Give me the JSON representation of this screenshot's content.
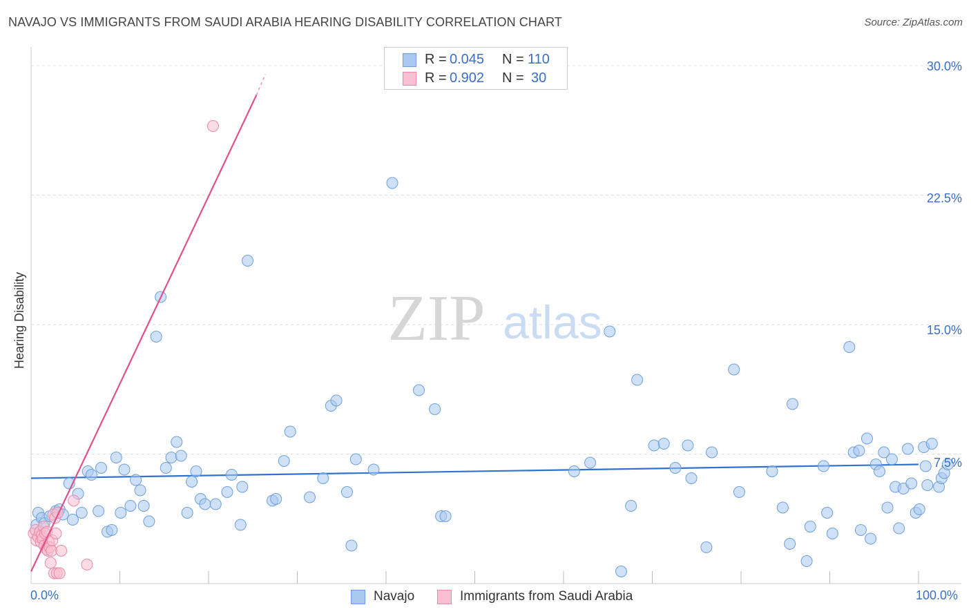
{
  "title": "NAVAJO VS IMMIGRANTS FROM SAUDI ARABIA HEARING DISABILITY CORRELATION CHART",
  "source": "Source: ZipAtlas.com",
  "watermark": {
    "zip": "ZIP",
    "atlas": "atlas"
  },
  "legend_top": {
    "rows": [
      {
        "r_label": "R =",
        "r_value": "0.045",
        "n_label": "N =",
        "n_value": "110",
        "color": "#a8c8f0",
        "border": "#6f9fd8"
      },
      {
        "r_label": "R =",
        "r_value": "0.902",
        "n_label": "N =",
        "n_value": "30",
        "color": "#f8c0d0",
        "border": "#e98aa8"
      }
    ]
  },
  "legend_bottom": [
    {
      "label": "Navajo",
      "color": "#a8c8f0",
      "border": "#6f9fd8"
    },
    {
      "label": "Immigrants from Saudi Arabia",
      "color": "#f8c0d0",
      "border": "#e98aa8"
    }
  ],
  "chart_data": {
    "type": "scatter",
    "title": "NAVAJO VS IMMIGRANTS FROM SAUDI ARABIA HEARING DISABILITY CORRELATION CHART",
    "xlabel": "",
    "ylabel": "Hearing Disability",
    "xlim": [
      0,
      100
    ],
    "ylim": [
      0,
      30.8
    ],
    "x_tick_labels": [
      "0.0%",
      "100.0%"
    ],
    "y_ticks": [
      7.5,
      15.0,
      22.5,
      30.0
    ],
    "y_tick_labels": [
      "7.5%",
      "15.0%",
      "22.5%",
      "30.0%"
    ],
    "grid": true,
    "series": [
      {
        "name": "Navajo",
        "color": "#a8c8f0",
        "stroke": "#6f9fd8",
        "trend": {
          "x": [
            0,
            100
          ],
          "y": [
            6.1,
            6.9
          ],
          "color": "#2f72d0"
        },
        "points": [
          [
            0.6,
            3.4
          ],
          [
            0.8,
            4.1
          ],
          [
            1.2,
            3.8
          ],
          [
            1.5,
            3.5
          ],
          [
            2.1,
            3.9
          ],
          [
            2.8,
            4.2
          ],
          [
            3.2,
            4.3
          ],
          [
            3.6,
            4.0
          ],
          [
            4.3,
            5.8
          ],
          [
            4.7,
            3.7
          ],
          [
            5.3,
            5.2
          ],
          [
            5.7,
            4.1
          ],
          [
            6.4,
            6.5
          ],
          [
            6.8,
            6.3
          ],
          [
            7.6,
            4.2
          ],
          [
            7.9,
            6.7
          ],
          [
            8.6,
            3.0
          ],
          [
            9.1,
            3.1
          ],
          [
            9.6,
            7.3
          ],
          [
            10.1,
            4.1
          ],
          [
            10.5,
            6.6
          ],
          [
            11.2,
            4.5
          ],
          [
            11.8,
            6.0
          ],
          [
            12.3,
            5.4
          ],
          [
            12.7,
            4.5
          ],
          [
            13.3,
            3.6
          ],
          [
            14.1,
            14.3
          ],
          [
            14.6,
            16.6
          ],
          [
            15.2,
            6.7
          ],
          [
            15.8,
            7.3
          ],
          [
            16.4,
            8.2
          ],
          [
            16.9,
            7.4
          ],
          [
            17.6,
            4.1
          ],
          [
            18.1,
            5.9
          ],
          [
            18.6,
            6.5
          ],
          [
            19.1,
            4.9
          ],
          [
            19.6,
            4.6
          ],
          [
            20.8,
            4.6
          ],
          [
            22.1,
            5.3
          ],
          [
            22.6,
            6.3
          ],
          [
            23.6,
            3.4
          ],
          [
            23.8,
            5.6
          ],
          [
            24.4,
            18.7
          ],
          [
            27.2,
            4.8
          ],
          [
            27.6,
            4.9
          ],
          [
            28.5,
            7.1
          ],
          [
            29.2,
            8.8
          ],
          [
            31.4,
            5.0
          ],
          [
            32.9,
            6.1
          ],
          [
            33.8,
            10.3
          ],
          [
            34.4,
            10.6
          ],
          [
            35.6,
            5.3
          ],
          [
            36.1,
            2.2
          ],
          [
            36.6,
            7.2
          ],
          [
            38.6,
            6.6
          ],
          [
            40.7,
            23.2
          ],
          [
            43.7,
            11.2
          ],
          [
            45.5,
            10.1
          ],
          [
            46.2,
            3.9
          ],
          [
            46.7,
            3.9
          ],
          [
            61.2,
            6.5
          ],
          [
            63.0,
            7.0
          ],
          [
            65.2,
            14.6
          ],
          [
            66.5,
            0.7
          ],
          [
            67.6,
            4.5
          ],
          [
            68.3,
            11.8
          ],
          [
            70.2,
            8.0
          ],
          [
            71.3,
            8.1
          ],
          [
            72.6,
            6.7
          ],
          [
            74.0,
            8.0
          ],
          [
            74.4,
            6.1
          ],
          [
            76.1,
            2.1
          ],
          [
            76.7,
            7.6
          ],
          [
            79.2,
            12.4
          ],
          [
            79.8,
            5.3
          ],
          [
            83.5,
            6.5
          ],
          [
            84.7,
            4.4
          ],
          [
            85.5,
            2.3
          ],
          [
            85.8,
            10.4
          ],
          [
            87.4,
            1.3
          ],
          [
            87.8,
            3.3
          ],
          [
            89.3,
            6.8
          ],
          [
            89.7,
            4.1
          ],
          [
            90.3,
            2.9
          ],
          [
            92.2,
            13.7
          ],
          [
            92.7,
            7.6
          ],
          [
            93.3,
            7.7
          ],
          [
            93.5,
            3.1
          ],
          [
            94.2,
            8.4
          ],
          [
            94.6,
            2.6
          ],
          [
            95.2,
            6.9
          ],
          [
            95.6,
            6.5
          ],
          [
            96.1,
            7.6
          ],
          [
            96.5,
            4.4
          ],
          [
            97.0,
            7.2
          ],
          [
            97.4,
            5.6
          ],
          [
            97.8,
            3.2
          ],
          [
            98.3,
            5.5
          ],
          [
            98.8,
            7.8
          ],
          [
            99.2,
            5.8
          ],
          [
            99.7,
            4.1
          ],
          [
            100.1,
            4.3
          ],
          [
            100.6,
            7.9
          ],
          [
            101.0,
            5.7
          ],
          [
            101.5,
            8.1
          ],
          [
            102.3,
            5.6
          ],
          [
            102.6,
            6.1
          ],
          [
            102.9,
            6.4
          ],
          [
            103.3,
            6.9
          ],
          [
            100.8,
            6.8
          ]
        ]
      },
      {
        "name": "Immigrants from Saudi Arabia",
        "color": "#f8c0d0",
        "stroke": "#e98aa8",
        "trend": {
          "x": [
            0,
            25.4
          ],
          "y": [
            0.7,
            28.3
          ],
          "color": "#e0508a",
          "dashed_extension": {
            "x": [
              25.4,
              26.4
            ],
            "y": [
              28.3,
              29.5
            ]
          }
        },
        "points": [
          [
            0.3,
            2.9
          ],
          [
            0.5,
            3.1
          ],
          [
            0.6,
            2.5
          ],
          [
            0.8,
            2.7
          ],
          [
            1.0,
            3.0
          ],
          [
            1.1,
            2.4
          ],
          [
            1.2,
            2.8
          ],
          [
            1.3,
            2.6
          ],
          [
            1.4,
            3.3
          ],
          [
            1.5,
            2.2
          ],
          [
            1.6,
            2.9
          ],
          [
            1.7,
            2.0
          ],
          [
            1.8,
            3.0
          ],
          [
            1.9,
            1.9
          ],
          [
            2.0,
            2.4
          ],
          [
            2.1,
            2.1
          ],
          [
            2.2,
            1.2
          ],
          [
            2.3,
            1.9
          ],
          [
            2.4,
            2.5
          ],
          [
            2.5,
            4.0
          ],
          [
            2.6,
            0.6
          ],
          [
            2.7,
            3.8
          ],
          [
            2.8,
            2.9
          ],
          [
            2.9,
            0.6
          ],
          [
            3.0,
            4.1
          ],
          [
            3.2,
            0.6
          ],
          [
            3.4,
            1.9
          ],
          [
            4.8,
            4.8
          ],
          [
            6.3,
            1.1
          ],
          [
            20.5,
            26.5
          ]
        ]
      }
    ]
  }
}
